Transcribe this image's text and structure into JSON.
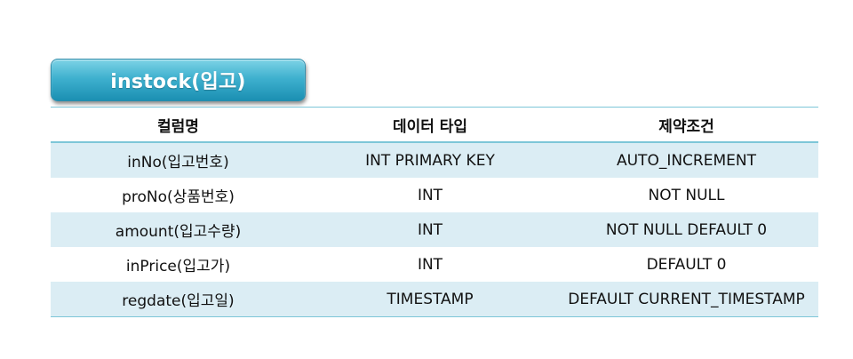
{
  "title": "instock(입고)",
  "table": {
    "headers": [
      "컬럼명",
      "데이터 타입",
      "제약조건"
    ],
    "rows": [
      [
        "inNo(입고번호)",
        "INT PRIMARY KEY",
        "AUTO_INCREMENT"
      ],
      [
        "proNo(상품번호)",
        "INT",
        "NOT NULL"
      ],
      [
        "amount(입고수량)",
        "INT",
        "NOT NULL DEFAULT 0"
      ],
      [
        "inPrice(입고가)",
        "INT",
        "DEFAULT 0"
      ],
      [
        "regdate(입고일)",
        "TIMESTAMP",
        "DEFAULT CURRENT_TIMESTAMP"
      ]
    ]
  },
  "colors": {
    "badge_top": "#7ed3e6",
    "badge_bottom": "#1b8fb2",
    "row_band": "#dbedf4",
    "rule": "#7dc6d8"
  }
}
